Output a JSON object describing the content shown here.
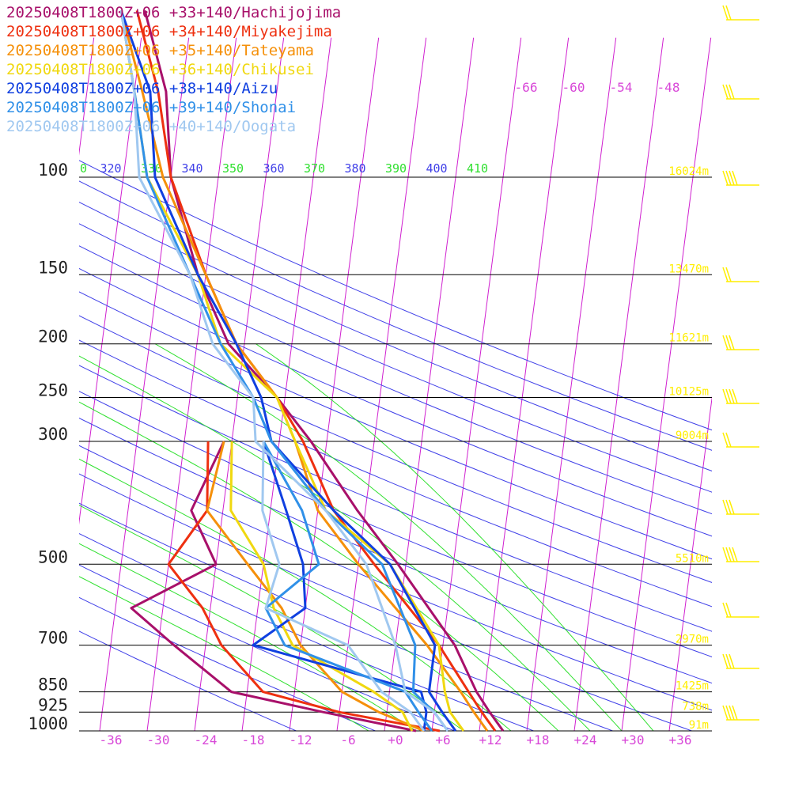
{
  "legend": [
    {
      "label": "20250408T1800Z+06 +33+140/Hachijojima",
      "color": "#a8106a"
    },
    {
      "label": "20250408T1800Z+06 +34+140/Miyakejima",
      "color": "#ee3010"
    },
    {
      "label": "20250408T1800Z+06 +35+140/Tateyama",
      "color": "#f5900a"
    },
    {
      "label": "20250408T1800Z+06 +36+140/Chikusei",
      "color": "#f0d810"
    },
    {
      "label": "20250408T1800Z+06 +38+140/Aizu",
      "color": "#1040e0"
    },
    {
      "label": "20250408T1800Z+06 +39+140/Shonai",
      "color": "#3090e8"
    },
    {
      "label": "20250408T1800Z+06 +40+140/Oogata",
      "color": "#a0c8f0"
    }
  ],
  "chart_data": {
    "type": "line",
    "chart_kind": "skew-T log-P sounding",
    "y_scale": "log",
    "ylim": [
      1000,
      100
    ],
    "xlim": [
      -36,
      36
    ],
    "pressure_ticks": [
      {
        "p": 100,
        "label": "100"
      },
      {
        "p": 150,
        "label": "150"
      },
      {
        "p": 200,
        "label": "200"
      },
      {
        "p": 250,
        "label": "250"
      },
      {
        "p": 300,
        "label": "300"
      },
      {
        "p": 500,
        "label": "500"
      },
      {
        "p": 700,
        "label": "700"
      },
      {
        "p": 850,
        "label": "850"
      },
      {
        "p": 925,
        "label": "925"
      },
      {
        "p": 1000,
        "label": "1000"
      }
    ],
    "height_labels": [
      {
        "p": 100,
        "label": "16024m"
      },
      {
        "p": 150,
        "label": "13470m"
      },
      {
        "p": 200,
        "label": "11621m"
      },
      {
        "p": 250,
        "label": "10125m"
      },
      {
        "p": 300,
        "label": "9004m"
      },
      {
        "p": 500,
        "label": "5510m"
      },
      {
        "p": 700,
        "label": "2970m"
      },
      {
        "p": 850,
        "label": "1425m"
      },
      {
        "p": 925,
        "label": "738m"
      },
      {
        "p": 1000,
        "label": "91m"
      }
    ],
    "temperature_ticks": [
      "-36",
      "-30",
      "-24",
      "-18",
      "-12",
      "-6",
      "+0",
      "+6",
      "+12",
      "+18",
      "+24",
      "+30",
      "+36"
    ],
    "top_temperature_labels": [
      "-66",
      "-60",
      "-54",
      "-48"
    ],
    "theta_labels": [
      "0",
      "320",
      "330",
      "340",
      "350",
      "360",
      "370",
      "380",
      "390",
      "400",
      "410"
    ],
    "series": [
      {
        "name": "Hachijojima",
        "temperature": [
          [
            1000,
            13
          ],
          [
            925,
            11
          ],
          [
            850,
            9
          ],
          [
            700,
            5.5
          ],
          [
            500,
            -3
          ],
          [
            400,
            -9
          ],
          [
            300,
            -16
          ],
          [
            250,
            -21
          ],
          [
            200,
            -28
          ],
          [
            150,
            -33
          ],
          [
            100,
            -38
          ],
          [
            70,
            -40
          ],
          [
            50,
            -44
          ]
        ],
        "dewpoint": [
          [
            1000,
            2
          ],
          [
            925,
            -10
          ],
          [
            850,
            -22
          ],
          [
            700,
            -30
          ],
          [
            600,
            -36
          ],
          [
            500,
            -26
          ],
          [
            400,
            -30
          ],
          [
            300,
            -27
          ]
        ]
      },
      {
        "name": "Miyakejima",
        "temperature": [
          [
            1000,
            12
          ],
          [
            925,
            10
          ],
          [
            850,
            8
          ],
          [
            700,
            3.5
          ],
          [
            500,
            -6
          ],
          [
            400,
            -12
          ],
          [
            300,
            -17
          ],
          [
            250,
            -21
          ],
          [
            200,
            -27
          ],
          [
            150,
            -32
          ],
          [
            100,
            -38
          ],
          [
            70,
            -41
          ],
          [
            50,
            -45
          ]
        ],
        "dewpoint": [
          [
            1000,
            5
          ],
          [
            925,
            -8
          ],
          [
            850,
            -18
          ],
          [
            700,
            -24
          ],
          [
            600,
            -27
          ],
          [
            500,
            -32
          ],
          [
            400,
            -28
          ],
          [
            300,
            -29
          ]
        ]
      },
      {
        "name": "Tateyama",
        "temperature": [
          [
            1000,
            11
          ],
          [
            925,
            9
          ],
          [
            850,
            7
          ],
          [
            700,
            2
          ],
          [
            500,
            -8
          ],
          [
            400,
            -14
          ],
          [
            300,
            -18
          ],
          [
            250,
            -21
          ],
          [
            200,
            -27
          ],
          [
            150,
            -32
          ],
          [
            100,
            -39
          ],
          [
            70,
            -43
          ],
          [
            50,
            -47
          ]
        ],
        "dewpoint": [
          [
            1000,
            3
          ],
          [
            925,
            -3
          ],
          [
            850,
            -8
          ],
          [
            700,
            -14
          ],
          [
            600,
            -17
          ],
          [
            500,
            -22
          ],
          [
            400,
            -28
          ],
          [
            300,
            -27
          ]
        ]
      },
      {
        "name": "Chikusei",
        "temperature": [
          [
            1000,
            8
          ],
          [
            925,
            6
          ],
          [
            850,
            5
          ],
          [
            700,
            3.5
          ],
          [
            500,
            -4
          ],
          [
            400,
            -13
          ],
          [
            300,
            -18
          ],
          [
            250,
            -21
          ],
          [
            200,
            -29
          ],
          [
            150,
            -33
          ],
          [
            100,
            -41
          ],
          [
            70,
            -44
          ],
          [
            50,
            -47
          ]
        ],
        "dewpoint": [
          [
            1000,
            1.5
          ],
          [
            925,
            0
          ],
          [
            850,
            -4
          ],
          [
            700,
            -15
          ],
          [
            600,
            -18
          ],
          [
            500,
            -20
          ],
          [
            400,
            -25
          ],
          [
            300,
            -26
          ]
        ]
      },
      {
        "name": "Aizu",
        "temperature": [
          [
            1000,
            7
          ],
          [
            925,
            5
          ],
          [
            850,
            3
          ],
          [
            700,
            3
          ],
          [
            500,
            -4
          ],
          [
            400,
            -12
          ],
          [
            300,
            -21
          ],
          [
            250,
            -23
          ],
          [
            200,
            -27
          ],
          [
            150,
            -33
          ],
          [
            100,
            -40
          ],
          [
            70,
            -42
          ],
          [
            50,
            -47
          ]
        ],
        "dewpoint": [
          [
            1000,
            3
          ],
          [
            925,
            3
          ],
          [
            850,
            2
          ],
          [
            700,
            -20
          ],
          [
            600,
            -14
          ],
          [
            500,
            -15
          ],
          [
            400,
            -18
          ],
          [
            300,
            -22
          ]
        ]
      },
      {
        "name": "Shonai",
        "temperature": [
          [
            1000,
            6
          ],
          [
            925,
            4
          ],
          [
            850,
            1
          ],
          [
            700,
            0.5
          ],
          [
            500,
            -5
          ],
          [
            400,
            -13
          ],
          [
            300,
            -21
          ],
          [
            250,
            -24
          ],
          [
            200,
            -29
          ],
          [
            150,
            -34
          ],
          [
            100,
            -41
          ],
          [
            70,
            -44
          ],
          [
            50,
            -47
          ]
        ],
        "dewpoint": [
          [
            1000,
            4
          ],
          [
            925,
            2
          ],
          [
            850,
            0
          ],
          [
            700,
            -16
          ],
          [
            600,
            -19
          ],
          [
            500,
            -13
          ],
          [
            400,
            -16
          ],
          [
            300,
            -22
          ]
        ]
      },
      {
        "name": "Oogata",
        "temperature": [
          [
            1000,
            6
          ],
          [
            925,
            4
          ],
          [
            850,
            0
          ],
          [
            700,
            -2
          ],
          [
            500,
            -7
          ],
          [
            400,
            -13
          ],
          [
            300,
            -23
          ],
          [
            250,
            -24
          ],
          [
            200,
            -30
          ],
          [
            150,
            -34
          ],
          [
            100,
            -42
          ],
          [
            70,
            -44
          ],
          [
            50,
            -47
          ]
        ],
        "dewpoint": [
          [
            1000,
            3
          ],
          [
            925,
            1
          ],
          [
            850,
            -3
          ],
          [
            700,
            -8
          ],
          [
            600,
            -19
          ],
          [
            500,
            -18
          ],
          [
            400,
            -21
          ],
          [
            300,
            -22
          ]
        ]
      }
    ],
    "wind_barbs_color": "#ffee00",
    "grid_colors": {
      "isotherm": "#d020d0",
      "dry_adiabat": "#4040e8",
      "moist_adiabat": "#30e030",
      "isobar": "#000000",
      "text": "#d848d8",
      "height": "#ffee00"
    }
  }
}
